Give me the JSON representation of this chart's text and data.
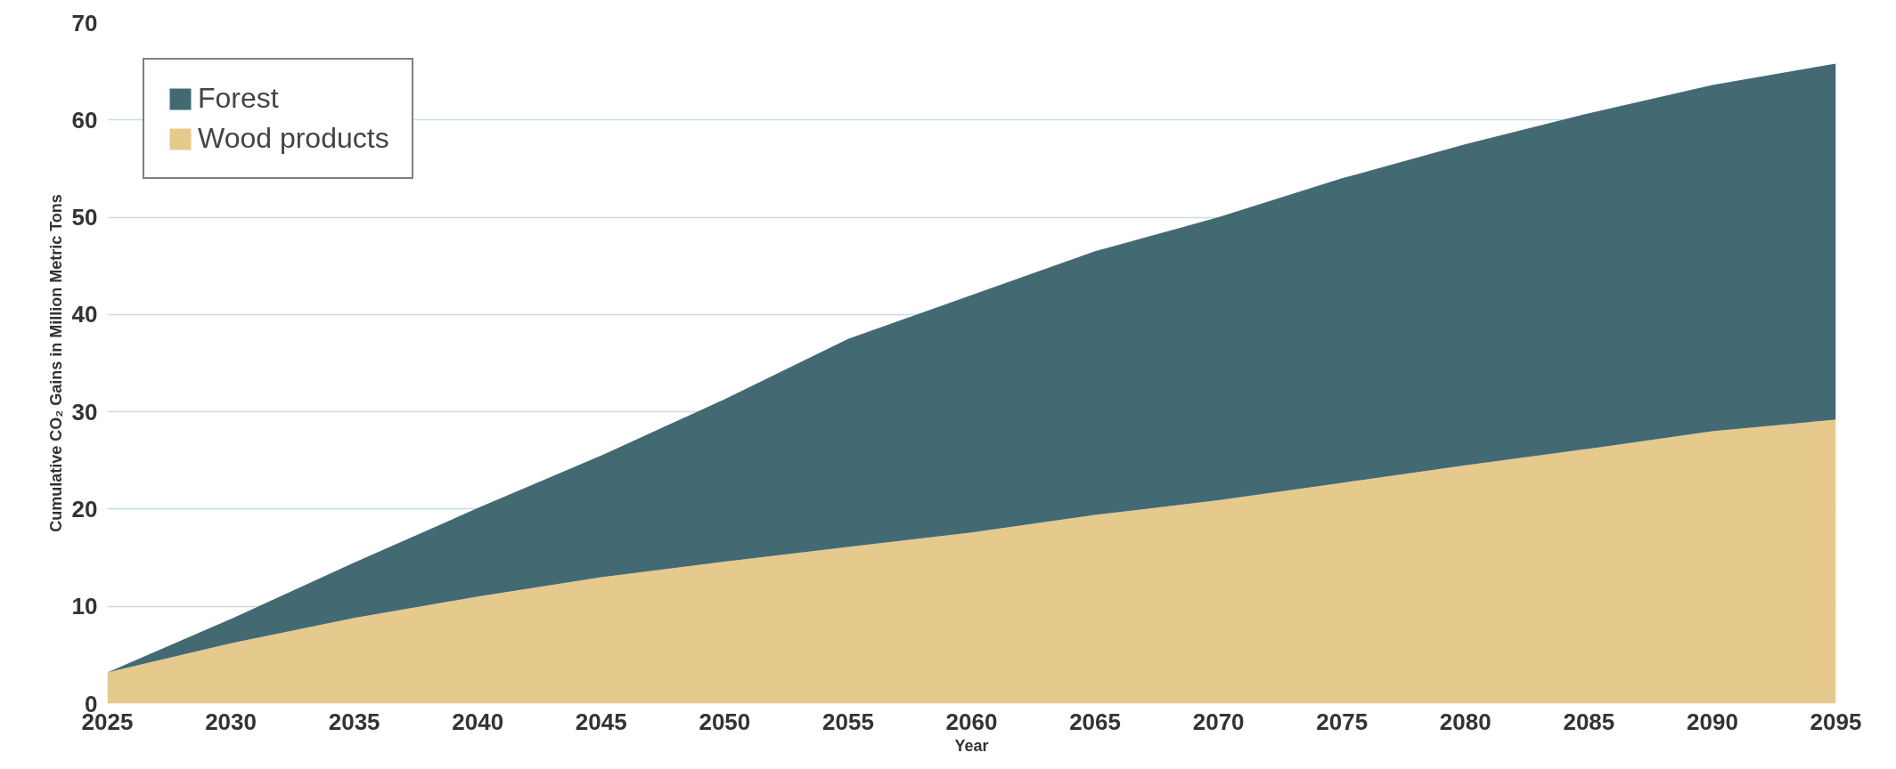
{
  "chart_data": {
    "type": "area",
    "stacked": true,
    "xlabel": "Year",
    "ylabel": "Cumulative CO₂ Gains in Million Metric Tons",
    "x": [
      2025,
      2030,
      2035,
      2040,
      2045,
      2050,
      2055,
      2060,
      2065,
      2070,
      2075,
      2080,
      2085,
      2090,
      2095
    ],
    "series": [
      {
        "name": "Wood products",
        "color": "#e6c98c",
        "values": [
          3.2,
          6.2,
          8.8,
          11,
          13,
          14.6,
          16.1,
          17.6,
          19.4,
          20.9,
          22.7,
          24.5,
          26.2,
          28,
          29.2
        ]
      },
      {
        "name": "Forest",
        "color": "#436a73",
        "values": [
          0,
          2.5,
          5.7,
          9.1,
          12.5,
          16.7,
          21.4,
          24.4,
          27.1,
          29.1,
          31.3,
          33,
          34.5,
          35.6,
          36.6
        ]
      }
    ],
    "xlim": [
      2025,
      2095
    ],
    "xticks": [
      2025,
      2030,
      2035,
      2040,
      2045,
      2050,
      2055,
      2060,
      2065,
      2070,
      2075,
      2080,
      2085,
      2090,
      2095
    ],
    "ylim": [
      0,
      70
    ],
    "yticks": [
      0,
      10,
      20,
      30,
      40,
      50,
      60,
      70
    ],
    "grid": "y",
    "legend": "top left"
  }
}
